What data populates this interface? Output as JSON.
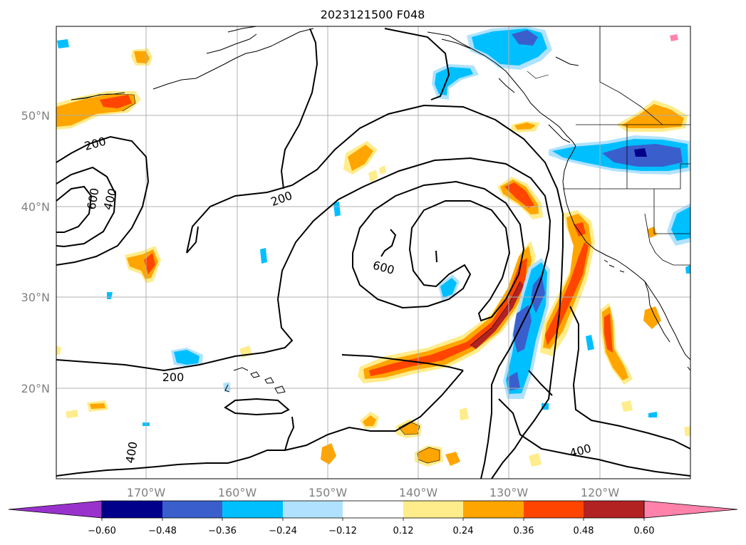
{
  "title": "2023121500 F048",
  "lat_labels": [
    "50°N",
    "40°N",
    "30°N",
    "20°N"
  ],
  "lon_labels": [
    "170°W",
    "160°W",
    "150°W",
    "140°W",
    "130°W",
    "120°W"
  ],
  "contour_labels": [
    "200",
    "400",
    "600",
    "200",
    "600",
    "200",
    "400",
    "400"
  ],
  "colorbar": {
    "ticks": [
      "−0.60",
      "−0.48",
      "−0.36",
      "−0.24",
      "−0.12",
      "0.12",
      "0.24",
      "0.36",
      "0.48",
      "0.60"
    ],
    "colors": [
      "#9932cc",
      "#00008b",
      "#3a5fcd",
      "#00bfff",
      "#b0e2ff",
      "#ffffff",
      "#ffec8b",
      "#ffa500",
      "#ff4500",
      "#b22222",
      "#ff82ab"
    ]
  },
  "colors": {
    "coast": "#000000",
    "grid": "#b0b0b0",
    "contour": "#000000"
  }
}
